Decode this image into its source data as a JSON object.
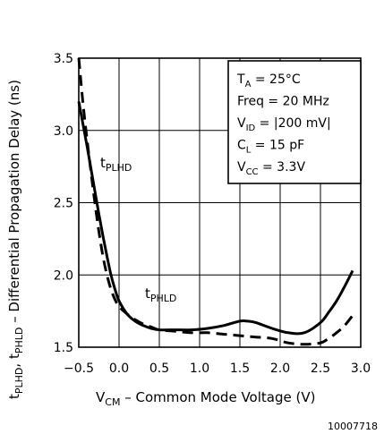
{
  "chart_data": {
    "type": "line",
    "xlabel": {
      "main": "V",
      "sub": "CM",
      "rest": " – Common Mode Voltage (V)"
    },
    "ylabel": {
      "p1": "t",
      "p1sub": "PLHD",
      "sep": ", ",
      "p2": "t",
      "p2sub": "PHLD",
      "rest": " – Differential Propagation Delay (ns)"
    },
    "xlim": [
      -0.5,
      3.0
    ],
    "ylim": [
      1.5,
      3.5
    ],
    "x_ticks": [
      "-0.5",
      "0.0",
      "0.5",
      "1.0",
      "1.5",
      "2.0",
      "2.5",
      "3.0"
    ],
    "y_ticks": [
      "1.5",
      "2.0",
      "2.5",
      "3.0",
      "3.5"
    ],
    "grid": true,
    "series": [
      {
        "name": "tPLHD",
        "label_main": "t",
        "label_sub": "PLHD",
        "style": "solid",
        "x": [
          -0.5,
          -0.45,
          -0.4,
          -0.35,
          -0.3,
          -0.25,
          -0.2,
          -0.15,
          -0.1,
          -0.05,
          0.0,
          0.1,
          0.2,
          0.3,
          0.4,
          0.5,
          0.7,
          0.9,
          1.1,
          1.3,
          1.5,
          1.6,
          1.7,
          1.9,
          2.1,
          2.3,
          2.5,
          2.6,
          2.7,
          2.8,
          2.9
        ],
        "y": [
          3.2,
          3.05,
          2.9,
          2.74,
          2.58,
          2.42,
          2.27,
          2.13,
          2.0,
          1.9,
          1.82,
          1.73,
          1.68,
          1.65,
          1.63,
          1.62,
          1.62,
          1.62,
          1.63,
          1.65,
          1.68,
          1.68,
          1.67,
          1.63,
          1.6,
          1.6,
          1.67,
          1.74,
          1.82,
          1.92,
          2.03
        ]
      },
      {
        "name": "tPHLD",
        "label_main": "t",
        "label_sub": "PHLD",
        "style": "dashed",
        "x": [
          -0.5,
          -0.45,
          -0.4,
          -0.35,
          -0.3,
          -0.25,
          -0.2,
          -0.15,
          -0.1,
          -0.05,
          0.0,
          0.1,
          0.2,
          0.3,
          0.4,
          0.5,
          0.7,
          0.9,
          1.1,
          1.3,
          1.5,
          1.7,
          1.9,
          2.1,
          2.3,
          2.5,
          2.6,
          2.7,
          2.8,
          2.9
        ],
        "y": [
          3.5,
          3.2,
          2.95,
          2.72,
          2.5,
          2.3,
          2.13,
          2.0,
          1.9,
          1.83,
          1.78,
          1.73,
          1.69,
          1.66,
          1.64,
          1.62,
          1.61,
          1.6,
          1.6,
          1.59,
          1.58,
          1.57,
          1.56,
          1.53,
          1.52,
          1.53,
          1.56,
          1.6,
          1.65,
          1.72
        ]
      }
    ],
    "conditions": [
      {
        "main": "T",
        "sub": "A",
        "rest": " = 25°C"
      },
      {
        "main": "Freq",
        "sub": "",
        "rest": " = 20 MHz"
      },
      {
        "main": "V",
        "sub": "ID",
        "rest": " = |200 mV|"
      },
      {
        "main": "C",
        "sub": "L",
        "rest": " = 15 pF"
      },
      {
        "main": "V",
        "sub": "CC",
        "rest": " = 3.3V"
      }
    ],
    "figure_id": "10007718"
  }
}
